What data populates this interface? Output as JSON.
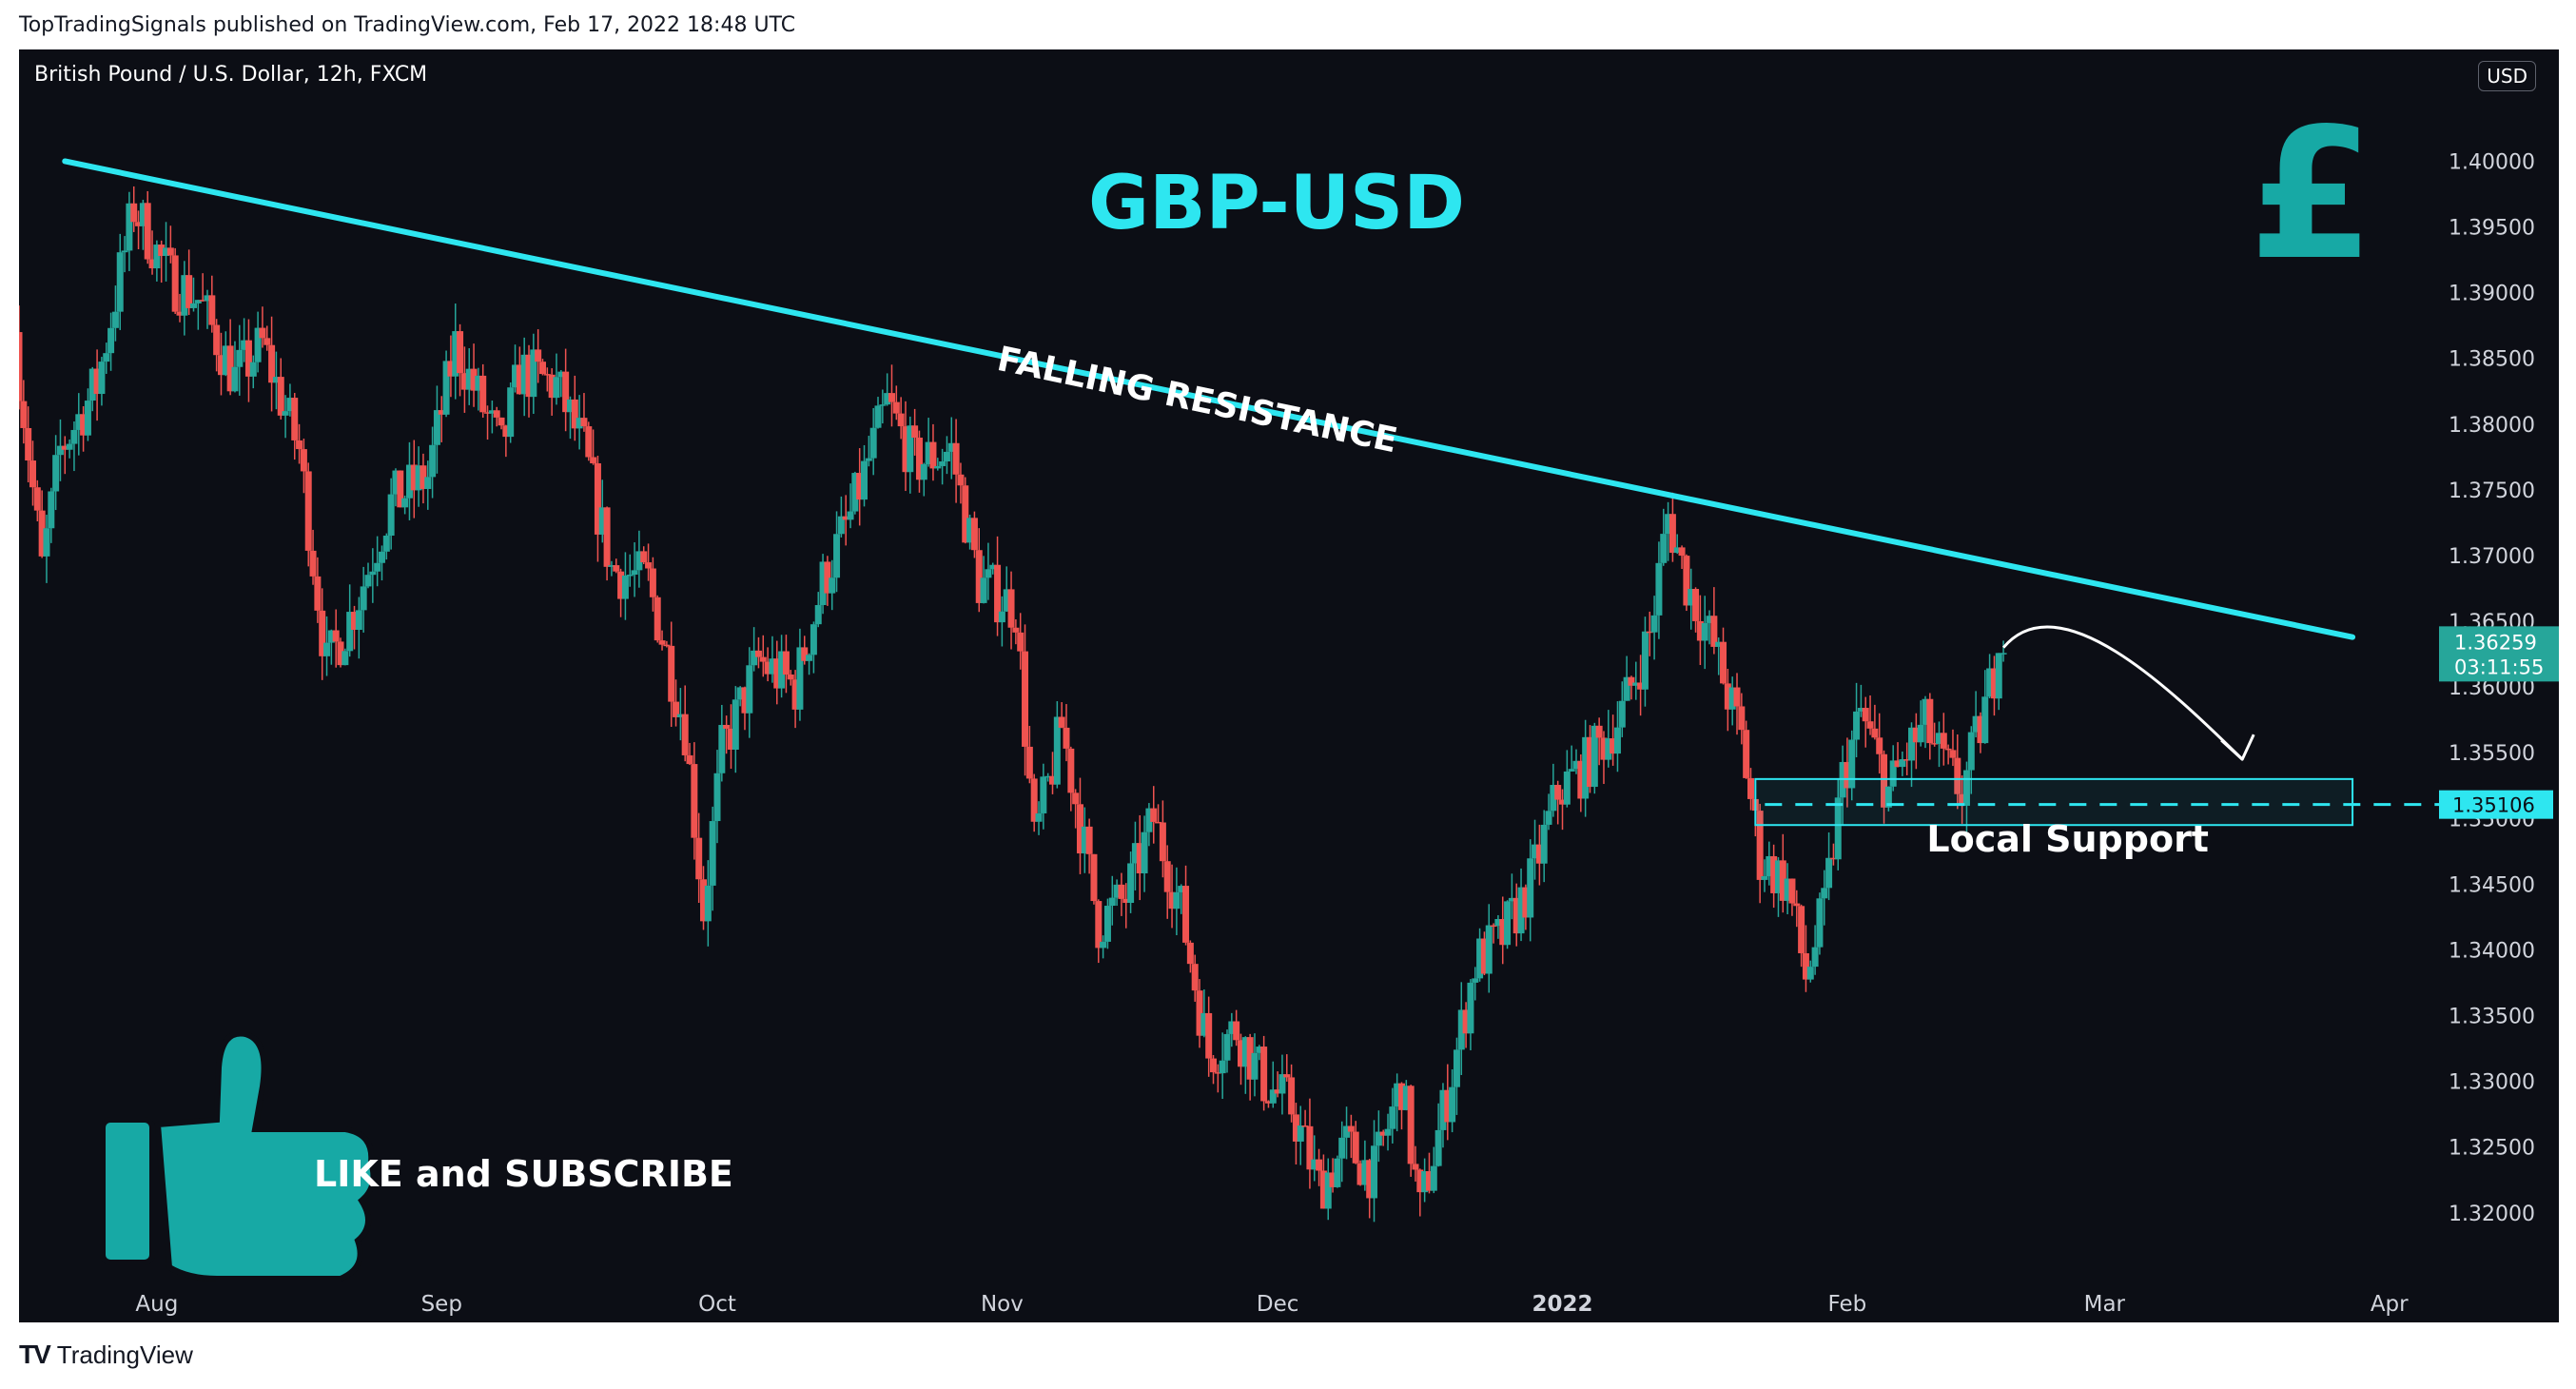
{
  "publisher_line": "TopTradingSignals published on TradingView.com, Feb 17, 2022 18:48 UTC",
  "pair_label": "British Pound / U.S. Dollar, 12h, FXCM",
  "currency": "USD",
  "footer_brand": "TradingView",
  "colors": {
    "background": "#0c0e15",
    "up_candle": "#26a69a",
    "down_candle": "#ef5350",
    "accent_cyan": "#2ee6f0",
    "sticker_teal": "#17a9a5",
    "current_price_bg": "#26a69a",
    "white": "#ffffff",
    "axis_text": "#d1d4dc"
  },
  "icons": {
    "currency_icon": "pound-sign-icon",
    "thumbs_icon": "thumbs-up-icon"
  },
  "chart_data": {
    "type": "candlestick",
    "title": "GBP-USD",
    "timeframe": "12h",
    "x_range": [
      "2021-07-17",
      "2022-04-06"
    ],
    "ylim": [
      1.3155,
      1.4085
    ],
    "y_ticks": [
      1.32,
      1.325,
      1.33,
      1.335,
      1.34,
      1.345,
      1.35,
      1.355,
      1.36,
      1.365,
      1.37,
      1.375,
      1.38,
      1.385,
      1.39,
      1.395,
      1.4
    ],
    "y_tick_labels": [
      "1.32000",
      "1.32500",
      "1.33000",
      "1.33500",
      "1.34000",
      "1.34500",
      "1.35000",
      "1.35500",
      "1.36000",
      "1.36500",
      "1.37000",
      "1.37500",
      "1.38000",
      "1.38500",
      "1.39000",
      "1.39500",
      "1.40000"
    ],
    "x_ticks": [
      {
        "label": "Aug",
        "date": "2021-08-01",
        "bold": false
      },
      {
        "label": "Sep",
        "date": "2021-09-01",
        "bold": false
      },
      {
        "label": "Oct",
        "date": "2021-10-01",
        "bold": false
      },
      {
        "label": "Nov",
        "date": "2021-11-01",
        "bold": false
      },
      {
        "label": "Dec",
        "date": "2021-12-01",
        "bold": false
      },
      {
        "label": "2022",
        "date": "2022-01-01",
        "bold": true
      },
      {
        "label": "Feb",
        "date": "2022-02-01",
        "bold": false
      },
      {
        "label": "Mar",
        "date": "2022-03-01",
        "bold": false
      },
      {
        "label": "Apr",
        "date": "2022-04-01",
        "bold": false
      }
    ],
    "price_path": [
      [
        "2021-07-17",
        1.387
      ],
      [
        "2021-07-20",
        1.369
      ],
      [
        "2021-07-22",
        1.378
      ],
      [
        "2021-07-26",
        1.383
      ],
      [
        "2021-07-30",
        1.3965
      ],
      [
        "2021-08-03",
        1.391
      ],
      [
        "2021-08-06",
        1.3895
      ],
      [
        "2021-08-10",
        1.3835
      ],
      [
        "2021-08-13",
        1.386
      ],
      [
        "2021-08-17",
        1.378
      ],
      [
        "2021-08-20",
        1.3615
      ],
      [
        "2021-08-23",
        1.366
      ],
      [
        "2021-08-27",
        1.374
      ],
      [
        "2021-08-31",
        1.376
      ],
      [
        "2021-09-03",
        1.386
      ],
      [
        "2021-09-08",
        1.378
      ],
      [
        "2021-09-10",
        1.384
      ],
      [
        "2021-09-14",
        1.383
      ],
      [
        "2021-09-17",
        1.378
      ],
      [
        "2021-09-20",
        1.369
      ],
      [
        "2021-09-24",
        1.368
      ],
      [
        "2021-09-28",
        1.357
      ],
      [
        "2021-09-30",
        1.343
      ],
      [
        "2021-10-02",
        1.355
      ],
      [
        "2021-10-06",
        1.362
      ],
      [
        "2021-10-10",
        1.36
      ],
      [
        "2021-10-13",
        1.368
      ],
      [
        "2021-10-16",
        1.373
      ],
      [
        "2021-10-20",
        1.3815
      ],
      [
        "2021-10-23",
        1.377
      ],
      [
        "2021-10-27",
        1.378
      ],
      [
        "2021-10-30",
        1.368
      ],
      [
        "2021-11-03",
        1.366
      ],
      [
        "2021-11-05",
        1.348
      ],
      [
        "2021-11-08",
        1.357
      ],
      [
        "2021-11-12",
        1.342
      ],
      [
        "2021-11-15",
        1.344
      ],
      [
        "2021-11-18",
        1.35
      ],
      [
        "2021-11-21",
        1.343
      ],
      [
        "2021-11-24",
        1.332
      ],
      [
        "2021-11-27",
        1.334
      ],
      [
        "2021-11-30",
        1.33
      ],
      [
        "2021-12-03",
        1.328
      ],
      [
        "2021-12-06",
        1.322
      ],
      [
        "2021-12-09",
        1.325
      ],
      [
        "2021-12-12",
        1.323
      ],
      [
        "2021-12-15",
        1.33
      ],
      [
        "2021-12-17",
        1.32
      ],
      [
        "2021-12-20",
        1.329
      ],
      [
        "2021-12-23",
        1.339
      ],
      [
        "2021-12-26",
        1.341
      ],
      [
        "2021-12-29",
        1.345
      ],
      [
        "2022-01-01",
        1.352
      ],
      [
        "2022-01-04",
        1.354
      ],
      [
        "2022-01-08",
        1.358
      ],
      [
        "2022-01-11",
        1.364
      ],
      [
        "2022-01-13",
        1.373
      ],
      [
        "2022-01-15",
        1.368
      ],
      [
        "2022-01-18",
        1.363
      ],
      [
        "2022-01-21",
        1.356
      ],
      [
        "2022-01-23",
        1.347
      ],
      [
        "2022-01-26",
        1.345
      ],
      [
        "2022-01-28",
        1.338
      ],
      [
        "2022-01-30",
        1.343
      ],
      [
        "2022-02-01",
        1.353
      ],
      [
        "2022-02-03",
        1.358
      ],
      [
        "2022-02-06",
        1.352
      ],
      [
        "2022-02-08",
        1.355
      ],
      [
        "2022-02-10",
        1.357
      ],
      [
        "2022-02-12",
        1.354
      ],
      [
        "2022-02-14",
        1.352
      ],
      [
        "2022-02-16",
        1.357
      ],
      [
        "2022-02-18",
        1.3626
      ]
    ],
    "current_price": {
      "price_label": "1.36259",
      "countdown": "03:11:55",
      "price": 1.36259
    },
    "support_level": {
      "price_label": "1.35106",
      "price": 1.35106,
      "zone": [
        1.3495,
        1.353
      ],
      "zone_dates": [
        "2022-01-22",
        "2022-03-28"
      ]
    },
    "trendline": {
      "start": [
        "2021-07-22",
        1.4
      ],
      "end": [
        "2022-03-28",
        1.3638
      ]
    },
    "projection": {
      "points": [
        [
          "2022-02-18",
          1.363
        ],
        [
          "2022-02-24",
          1.368
        ],
        [
          "2022-03-08",
          1.36
        ],
        [
          "2022-03-16",
          1.3545
        ]
      ]
    },
    "annotations": [
      {
        "text": "FALLING RESISTANCE",
        "date": "2021-11-22",
        "price": 1.381,
        "anchor": "trendline"
      },
      {
        "text": "Local Support",
        "date": "2022-02-25",
        "price": 1.3475,
        "anchor": "zone"
      },
      {
        "text": "LIKE and SUBSCRIBE",
        "date": "2021-08-12",
        "price": 1.327,
        "anchor": "sticker"
      }
    ]
  }
}
